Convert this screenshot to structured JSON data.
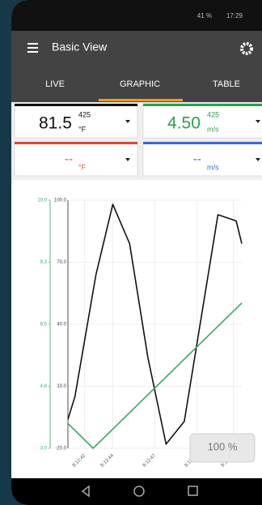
{
  "status_bar": {
    "battery": "41 %",
    "time": "17:29"
  },
  "app_bar": {
    "title": "Basic View"
  },
  "tabs": [
    "LIVE",
    "GRAPHIC",
    "TABLE"
  ],
  "cards": [
    {
      "value": "81.5",
      "code": "425",
      "unit": "°F",
      "color": "#111111"
    },
    {
      "value": "4.50",
      "code": "425",
      "unit": "m/s",
      "color": "#2e9e4e"
    },
    {
      "value": "--",
      "unit": "°F",
      "color": "#e2472d"
    },
    {
      "value": "--",
      "unit": "m/s",
      "color": "#3a68dc"
    }
  ],
  "zoom_button": "100 %",
  "chart_data": {
    "type": "line",
    "series": [
      {
        "color": "#111111",
        "x": [
          40.8,
          41.3,
          42.8,
          44.0,
          45.2,
          46.5,
          47.8,
          49.1,
          51.5,
          52.8,
          53.2
        ],
        "values": [
          -6,
          5,
          64,
          98,
          79,
          24,
          -18,
          -7,
          93,
          90,
          79
        ]
      },
      {
        "color": "#3aa66a",
        "axis": "y2",
        "x": [
          40.8,
          42.6,
          53.2
        ],
        "values": [
          3.7,
          3.0,
          7.1
        ]
      }
    ],
    "xlim": [
      40.8,
      53.2
    ],
    "xticks": [
      {
        "value": 42,
        "label": "8:12:42"
      },
      {
        "value": 44,
        "label": "8:12:44"
      },
      {
        "value": 47,
        "label": "8:12:47"
      },
      {
        "value": 50,
        "label": "8:12:50"
      },
      {
        "value": 52.6,
        "label": "8:12:52"
      }
    ],
    "ylim": [
      -20,
      100
    ],
    "yticks": [
      {
        "value": 100,
        "label": "100.0"
      },
      {
        "value": 70,
        "label": "70.0"
      },
      {
        "value": 40,
        "label": "40.0"
      },
      {
        "value": 10,
        "label": "10.0"
      },
      {
        "value": -20,
        "label": "-20.0"
      }
    ],
    "y2lim": [
      3,
      10
    ],
    "y2ticks": [
      {
        "value": 10,
        "label": "10.0"
      },
      {
        "value": 8.25,
        "label": "8.3"
      },
      {
        "value": 6.5,
        "label": "6.5"
      },
      {
        "value": 4.75,
        "label": "4.8"
      },
      {
        "value": 3,
        "label": "3.0"
      }
    ],
    "grid": true
  }
}
